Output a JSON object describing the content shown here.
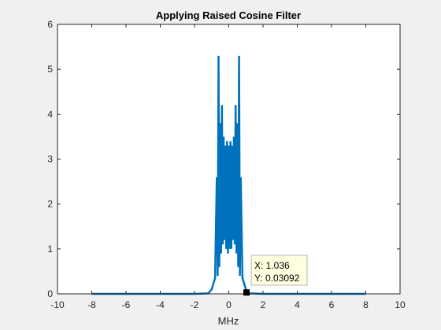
{
  "chart_data": {
    "type": "line",
    "title": "Applying Raised Cosine Filter",
    "xlabel": "MHz",
    "ylabel": "",
    "xlim": [
      -10,
      10
    ],
    "ylim": [
      0,
      6
    ],
    "xticks": [
      -10,
      -8,
      -6,
      -4,
      -2,
      0,
      2,
      4,
      6,
      8,
      10
    ],
    "xtick_labels": [
      "-10",
      "-8",
      "-6",
      "-4",
      "-2",
      "0",
      "2",
      "4",
      "6",
      "8",
      "10"
    ],
    "yticks": [
      0,
      1,
      2,
      3,
      4,
      5,
      6
    ],
    "ytick_labels": [
      "0",
      "1",
      "2",
      "3",
      "4",
      "5",
      "6"
    ],
    "grid": false,
    "series": [
      {
        "color": "#0072bd",
        "x": [
          -8,
          -2,
          -1.2,
          -1.0,
          -0.8,
          -0.7,
          -0.65,
          -0.6,
          -0.55,
          -0.5,
          -0.45,
          -0.4,
          -0.35,
          -0.3,
          -0.25,
          -0.2,
          -0.15,
          -0.1,
          -0.05,
          0.0,
          0.05,
          0.1,
          0.15,
          0.2,
          0.25,
          0.3,
          0.35,
          0.4,
          0.45,
          0.5,
          0.55,
          0.6,
          0.65,
          0.7,
          0.8,
          1.0,
          1.036,
          1.2,
          2,
          8
        ],
        "y": [
          0,
          0,
          0.01,
          0.1,
          0.35,
          2.6,
          0.4,
          5.3,
          0.6,
          3.8,
          0.9,
          4.2,
          1.1,
          3.5,
          1.2,
          3.3,
          1.0,
          3.4,
          0.9,
          3.3,
          1.0,
          3.4,
          1.0,
          3.3,
          1.2,
          3.5,
          1.1,
          4.2,
          0.9,
          3.8,
          0.6,
          5.3,
          0.4,
          2.6,
          0.35,
          0.1,
          0.03092,
          0.01,
          0,
          0
        ]
      }
    ],
    "datatip": {
      "x": 1.036,
      "y": 0.03092,
      "x_text": "X: 1.036",
      "y_text": "Y: 0.03092"
    }
  }
}
